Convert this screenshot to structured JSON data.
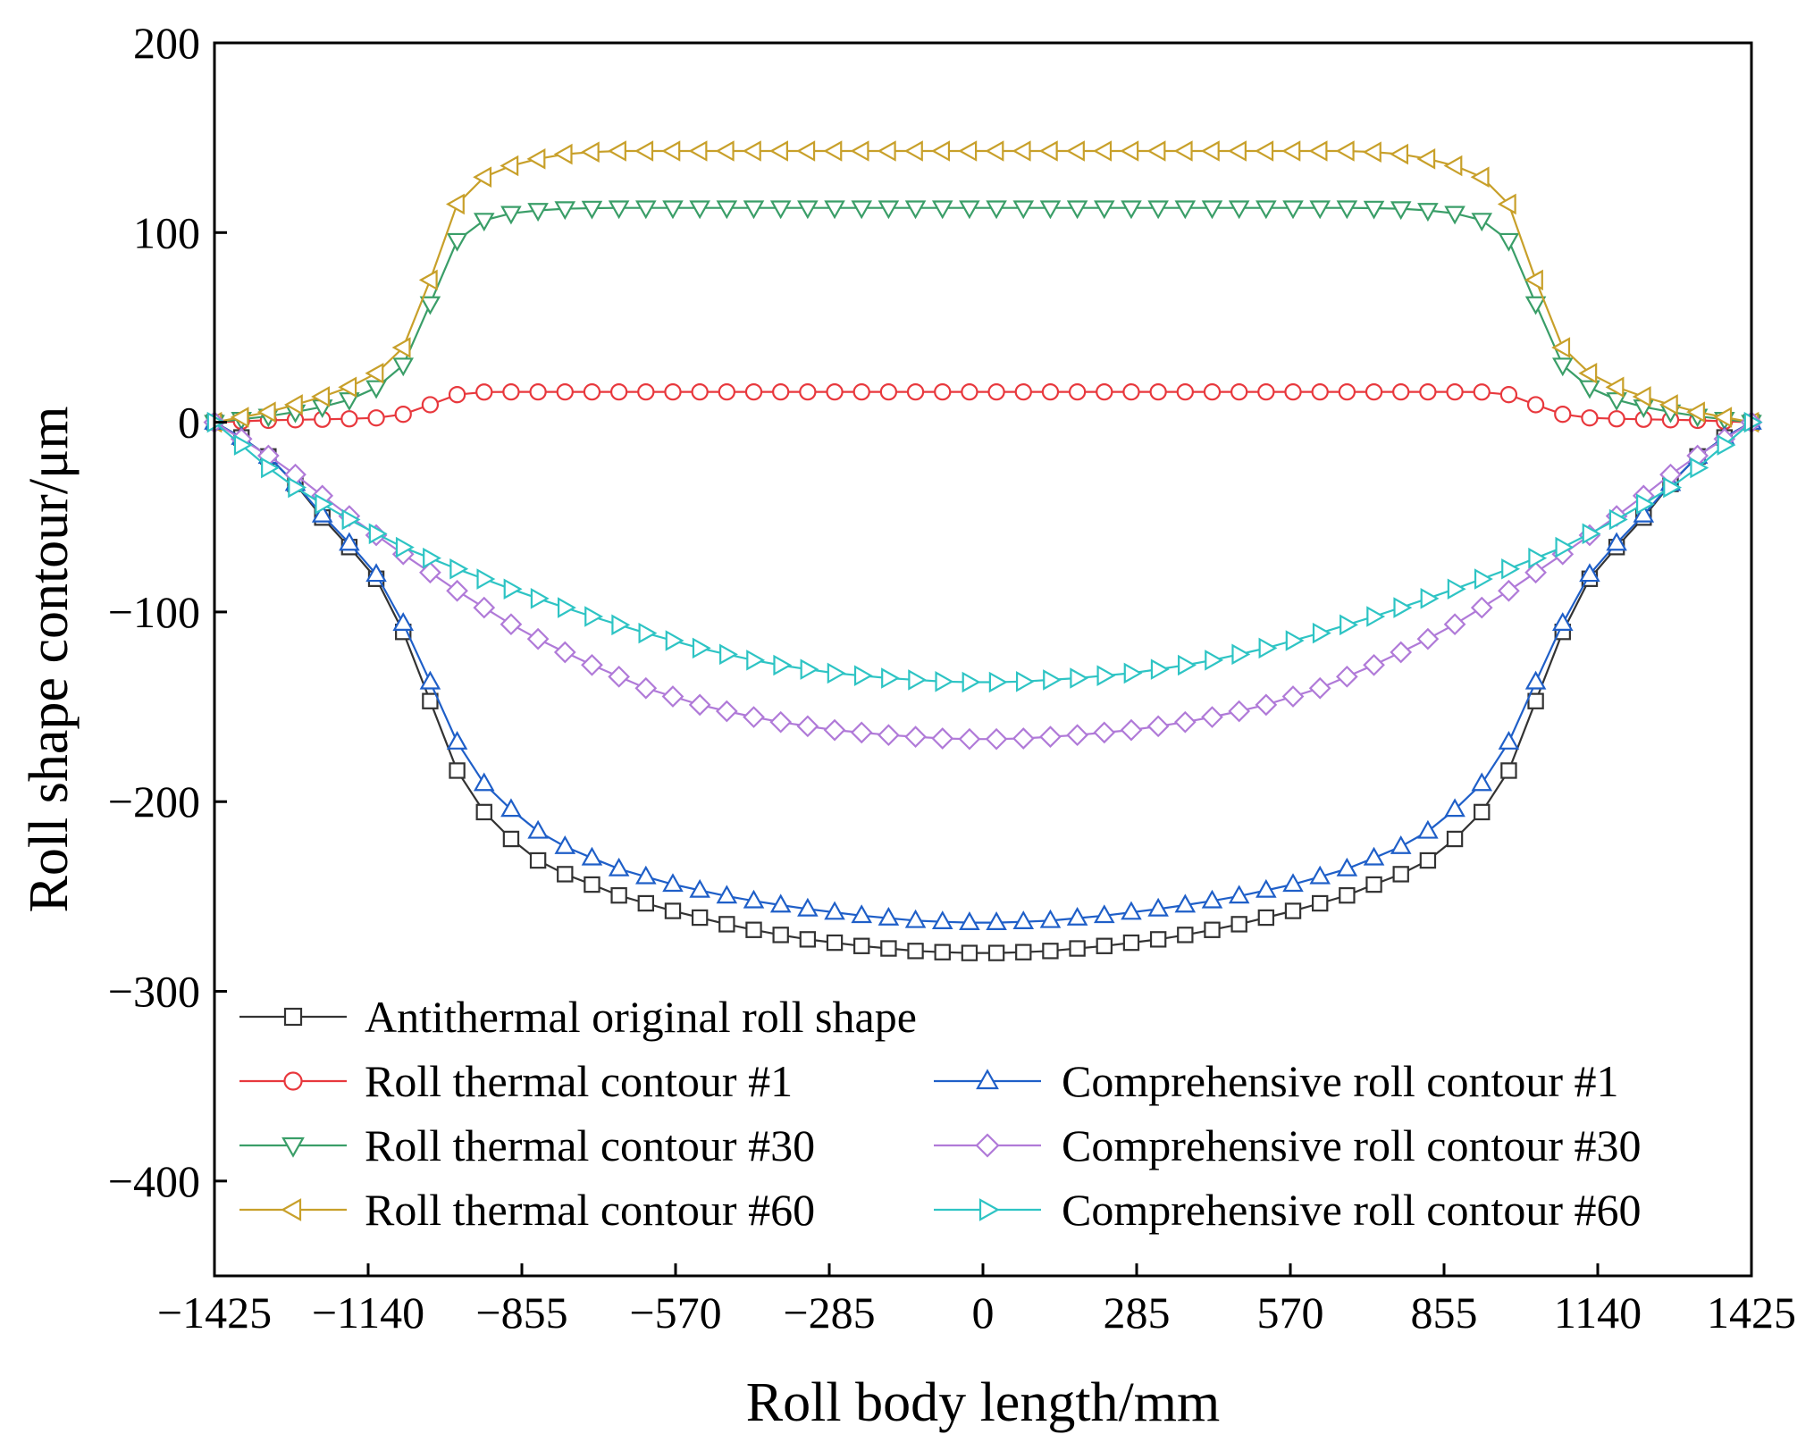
{
  "chart_data": {
    "type": "line",
    "title": "",
    "xlabel": "Roll body length/mm",
    "ylabel": "Roll shape contour/μm",
    "xlim": [
      -1425,
      1425
    ],
    "ylim": [
      -450,
      200
    ],
    "xticks": [
      -1425,
      -1140,
      -855,
      -570,
      -285,
      0,
      285,
      570,
      855,
      1140,
      1425
    ],
    "xtick_labels": [
      "−1425",
      "−1140",
      "−855",
      "−570",
      "−285",
      "0",
      "285",
      "570",
      "855",
      "1140",
      "1425"
    ],
    "yticks": [
      200,
      100,
      0,
      -100,
      -200,
      -300,
      -400
    ],
    "ytick_labels": [
      "200",
      "100",
      "0",
      "−100",
      "−200",
      "−300",
      "−400"
    ],
    "grid": false,
    "legend_position": "bottom-left",
    "marker_count": 58,
    "series": [
      {
        "name": "Antithermal original roll shape",
        "color": "#333333",
        "marker": "square",
        "x": [
          -1425,
          -1375,
          -1325,
          -1282,
          -1240,
          -1197,
          -1140,
          -1090,
          -1040,
          -990,
          -950,
          -900,
          -855,
          -805,
          -740,
          -670,
          -570,
          -455,
          -342,
          -228,
          -114,
          0,
          114,
          228,
          342,
          455,
          570,
          670,
          740,
          805,
          855,
          900,
          950,
          990,
          1040,
          1090,
          1140,
          1197,
          1240,
          1282,
          1325,
          1375,
          1425
        ],
        "y": [
          0,
          -8,
          -18,
          -30,
          -45,
          -60,
          -75,
          -100,
          -135,
          -175,
          -198,
          -213,
          -225,
          -235,
          -242,
          -250,
          -258,
          -266,
          -272,
          -276,
          -279,
          -280,
          -279,
          -276,
          -272,
          -266,
          -258,
          -250,
          -242,
          -235,
          -225,
          -213,
          -198,
          -175,
          -135,
          -100,
          -75,
          -60,
          -45,
          -30,
          -18,
          -8,
          0
        ]
      },
      {
        "name": "Roll thermal contour #1",
        "color": "#e8383d",
        "marker": "circle",
        "x": [
          -1425,
          -1330,
          -1240,
          -1140,
          -1090,
          -1040,
          -1000,
          -960,
          -920,
          -855,
          855,
          920,
          960,
          1000,
          1040,
          1090,
          1140,
          1240,
          1330,
          1425
        ],
        "y": [
          0,
          1,
          1.5,
          2,
          3,
          7,
          13,
          15.5,
          16,
          16,
          16,
          16,
          15.5,
          13,
          7,
          3,
          2,
          1.5,
          1,
          0
        ]
      },
      {
        "name": "Roll thermal contour #30",
        "color": "#3a9e68",
        "marker": "triangle-down",
        "x": [
          -1425,
          -1330,
          -1240,
          -1160,
          -1100,
          -1060,
          -1030,
          -1000,
          -970,
          -940,
          -900,
          -855,
          -790,
          -700,
          -600,
          600,
          700,
          790,
          855,
          900,
          940,
          970,
          1000,
          1030,
          1060,
          1100,
          1160,
          1240,
          1330,
          1425
        ],
        "y": [
          0,
          3,
          7,
          13,
          22,
          35,
          58,
          85,
          98,
          105,
          109,
          111,
          112.5,
          113,
          113,
          113,
          113,
          112.5,
          111,
          109,
          105,
          98,
          85,
          58,
          35,
          22,
          13,
          7,
          3,
          0
        ]
      },
      {
        "name": "Roll thermal contour #60",
        "color": "#c8a02a",
        "marker": "triangle-left",
        "x": [
          -1425,
          -1330,
          -1240,
          -1160,
          -1100,
          -1060,
          -1030,
          -1000,
          -970,
          -940,
          -900,
          -855,
          -790,
          -700,
          -600,
          600,
          700,
          790,
          855,
          900,
          940,
          970,
          1000,
          1030,
          1060,
          1100,
          1160,
          1240,
          1330,
          1425
        ],
        "y": [
          0,
          5,
          12,
          20,
          30,
          45,
          70,
          100,
          118,
          127,
          133,
          137,
          141,
          143,
          143,
          143,
          143,
          141,
          137,
          133,
          127,
          118,
          100,
          70,
          45,
          30,
          20,
          12,
          5,
          0
        ]
      },
      {
        "name": "Comprehensive roll contour #1",
        "color": "#1f5fc8",
        "marker": "triangle-up",
        "x": [
          -1425,
          -1375,
          -1325,
          -1282,
          -1240,
          -1197,
          -1140,
          -1090,
          -1040,
          -990,
          -950,
          -900,
          -855,
          -805,
          -740,
          -670,
          -570,
          -455,
          -342,
          -228,
          -114,
          0,
          114,
          228,
          342,
          455,
          570,
          670,
          740,
          805,
          855,
          900,
          950,
          990,
          1040,
          1090,
          1140,
          1197,
          1240,
          1282,
          1325,
          1375,
          1425
        ],
        "y": [
          0,
          -8,
          -18,
          -30,
          -44,
          -58,
          -73,
          -97,
          -127,
          -160,
          -183,
          -198,
          -209,
          -220,
          -228,
          -236,
          -244,
          -251,
          -256,
          -260,
          -263,
          -264,
          -263,
          -260,
          -256,
          -251,
          -244,
          -236,
          -228,
          -220,
          -209,
          -198,
          -183,
          -160,
          -127,
          -97,
          -73,
          -58,
          -44,
          -30,
          -18,
          -8,
          0
        ]
      },
      {
        "name": "Comprehensive roll contour #30",
        "color": "#b07ad8",
        "marker": "diamond",
        "x": [
          -1425,
          -1300,
          -1197,
          -1083,
          -969,
          -855,
          -741,
          -627,
          -513,
          -399,
          -285,
          -171,
          -57,
          0,
          57,
          171,
          285,
          399,
          513,
          627,
          741,
          855,
          969,
          1083,
          1197,
          1300,
          1425
        ],
        "y": [
          0,
          -22,
          -45,
          -68,
          -90,
          -110,
          -126,
          -140,
          -150,
          -157,
          -162,
          -165,
          -167,
          -167,
          -167,
          -165,
          -162,
          -157,
          -150,
          -140,
          -126,
          -110,
          -90,
          -68,
          -45,
          -22,
          0
        ]
      },
      {
        "name": "Comprehensive roll contour #60",
        "color": "#2ec4c4",
        "marker": "triangle-right",
        "x": [
          -1425,
          -1300,
          -1197,
          -1083,
          -969,
          -855,
          -741,
          -627,
          -513,
          -399,
          -285,
          -171,
          -57,
          0,
          57,
          171,
          285,
          399,
          513,
          627,
          741,
          855,
          969,
          1083,
          1197,
          1300,
          1425
        ],
        "y": [
          0,
          -30,
          -48,
          -65,
          -78,
          -90,
          -101,
          -111,
          -120,
          -127,
          -132,
          -135,
          -137,
          -137,
          -137,
          -135,
          -132,
          -127,
          -120,
          -111,
          -101,
          -90,
          -78,
          -65,
          -48,
          -30,
          0
        ]
      }
    ],
    "legend": {
      "items": [
        {
          "label": "Antithermal original roll shape",
          "series": 0
        },
        {
          "label": "Roll thermal contour #1",
          "series": 1
        },
        {
          "label": "Comprehensive roll contour #1",
          "series": 4
        },
        {
          "label": "Roll thermal contour #30",
          "series": 2
        },
        {
          "label": "Comprehensive roll contour #30",
          "series": 5
        },
        {
          "label": "Roll thermal contour #60",
          "series": 3
        },
        {
          "label": "Comprehensive roll contour #60",
          "series": 6
        }
      ]
    }
  }
}
